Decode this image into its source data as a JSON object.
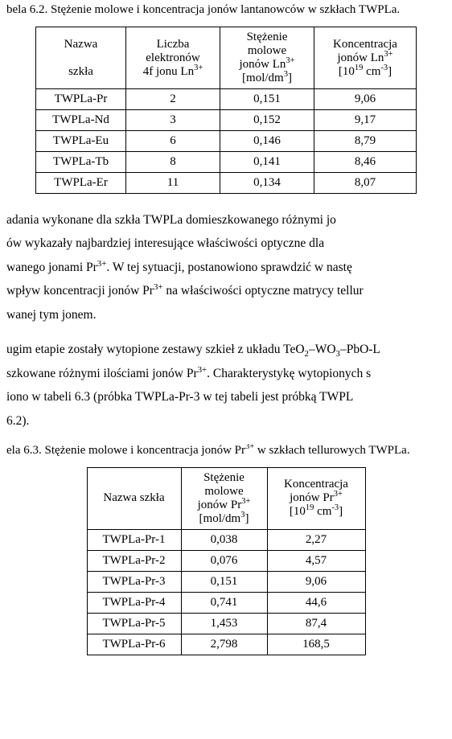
{
  "caption1_text": "bela 6.2. Stężenie molowe i koncentracja jonów lantanowców w szkłach TWPLa.",
  "table1": {
    "headers": {
      "c0a": "Nazwa",
      "c0b": "szkła",
      "c1a": "Liczba",
      "c1b": "elektronów",
      "c1c_pre": "4f jonu Ln",
      "c1c_sup": "3+",
      "c2a": "Stężenie",
      "c2b": "molowe",
      "c2c_pre": "jonów Ln",
      "c2c_sup": "3+",
      "c2d_pre": "[mol/dm",
      "c2d_sup": "3",
      "c2d_post": "]",
      "c3a": "Koncentracja",
      "c3b_pre": "jonów Ln",
      "c3b_sup": "3+",
      "c3c_pre": "[10",
      "c3c_sup": "19",
      "c3c_mid": " cm",
      "c3c_sup2": "-3",
      "c3c_post": "]"
    },
    "rows": [
      {
        "name": "TWPLa-Pr",
        "elec": "2",
        "mol": "0,151",
        "conc": "9,06"
      },
      {
        "name": "TWPLa-Nd",
        "elec": "3",
        "mol": "0,152",
        "conc": "9,17"
      },
      {
        "name": "TWPLa-Eu",
        "elec": "6",
        "mol": "0,146",
        "conc": "8,79"
      },
      {
        "name": "TWPLa-Tb",
        "elec": "8",
        "mol": "0,141",
        "conc": "8,46"
      },
      {
        "name": "TWPLa-Er",
        "elec": "11",
        "mol": "0,134",
        "conc": "8,07"
      }
    ]
  },
  "para1": {
    "l1": "adania wykonane dla szkła TWPLa domieszkowanego różnymi jo",
    "l2": "ów wykazały najbardziej interesujące właściwości optyczne dla ",
    "l3a": "wanego jonami Pr",
    "l3sup": "3+",
    "l3b": ". W tej sytuacji, postanowiono sprawdzić w nastę",
    "l4a": " wpływ koncentracji jonów Pr",
    "l4sup": "3+",
    "l4b": " na właściwości optyczne matrycy tellur",
    "l5": "wanej tym jonem."
  },
  "para2": {
    "l1a": "ugim etapie zostały wytopione zestawy szkieł z układu TeO",
    "l1s1": "2",
    "l1b": "–WO",
    "l1s2": "3",
    "l1c": "–PbO-L",
    "l2a": "szkowane różnymi ilościami jonów Pr",
    "l2sup": "3+",
    "l2b": ". Charakterystykę wytopionych s",
    "l3": "iono  w tabeli  6.3  (próbka  TWPLa-Pr-3  w  tej  tabeli  jest  próbką  TWPL",
    "l4": " 6.2)."
  },
  "caption2_pre": "ela 6.3. Stężenie molowe i koncentracja jonów Pr",
  "caption2_sup": "3+",
  "caption2_post": " w szkłach tellurowych TWPLa.",
  "table2": {
    "headers": {
      "c0": "Nazwa szkła",
      "c1a": "Stężenie",
      "c1b": "molowe",
      "c1c_pre": "jonów Pr",
      "c1c_sup": "3+",
      "c1d_pre": "[mol/dm",
      "c1d_sup": "3",
      "c1d_post": "]",
      "c2a": "Koncentracja",
      "c2b_pre": "jonów Pr",
      "c2b_sup": "3+",
      "c2c_pre": "[10",
      "c2c_sup": "19",
      "c2c_mid": " cm",
      "c2c_sup2": "-3",
      "c2c_post": "]"
    },
    "rows": [
      {
        "name": "TWPLa-Pr-1",
        "mol": "0,038",
        "conc": "2,27"
      },
      {
        "name": "TWPLa-Pr-2",
        "mol": "0,076",
        "conc": "4,57"
      },
      {
        "name": "TWPLa-Pr-3",
        "mol": "0,151",
        "conc": "9,06"
      },
      {
        "name": "TWPLa-Pr-4",
        "mol": "0,741",
        "conc": "44,6"
      },
      {
        "name": "TWPLa-Pr-5",
        "mol": "1,453",
        "conc": "87,4"
      },
      {
        "name": "TWPLa-Pr-6",
        "mol": "2,798",
        "conc": "168,5"
      }
    ]
  }
}
